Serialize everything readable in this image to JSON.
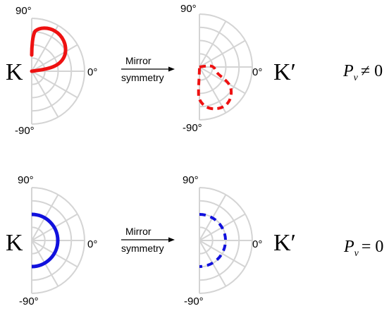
{
  "rows": [
    {
      "label_left": "K",
      "label_right": "K′",
      "arrow_top": "Mirror",
      "arrow_bottom": "symmetry",
      "equation": {
        "symbol": "P",
        "sub": "v",
        "relation": "≠ 0"
      },
      "curve_color": "#ee1111",
      "ticks": {
        "top": "90°",
        "right": "0°",
        "bottom": "-90°"
      },
      "curve_left": {
        "shape": "lobe-upper",
        "style": "solid"
      },
      "curve_right": {
        "shape": "lobe-lower",
        "style": "dashed"
      }
    },
    {
      "label_left": "K",
      "label_right": "K′",
      "arrow_top": "Mirror",
      "arrow_bottom": "symmetry",
      "equation": {
        "symbol": "P",
        "sub": "v",
        "relation": "= 0"
      },
      "curve_color": "#1111dd",
      "ticks": {
        "top": "90°",
        "right": "0°",
        "bottom": "-90°"
      },
      "curve_left": {
        "shape": "semicircle",
        "style": "solid"
      },
      "curve_right": {
        "shape": "semicircle",
        "style": "dashed"
      }
    }
  ],
  "grid_color": "#d4d4d4"
}
